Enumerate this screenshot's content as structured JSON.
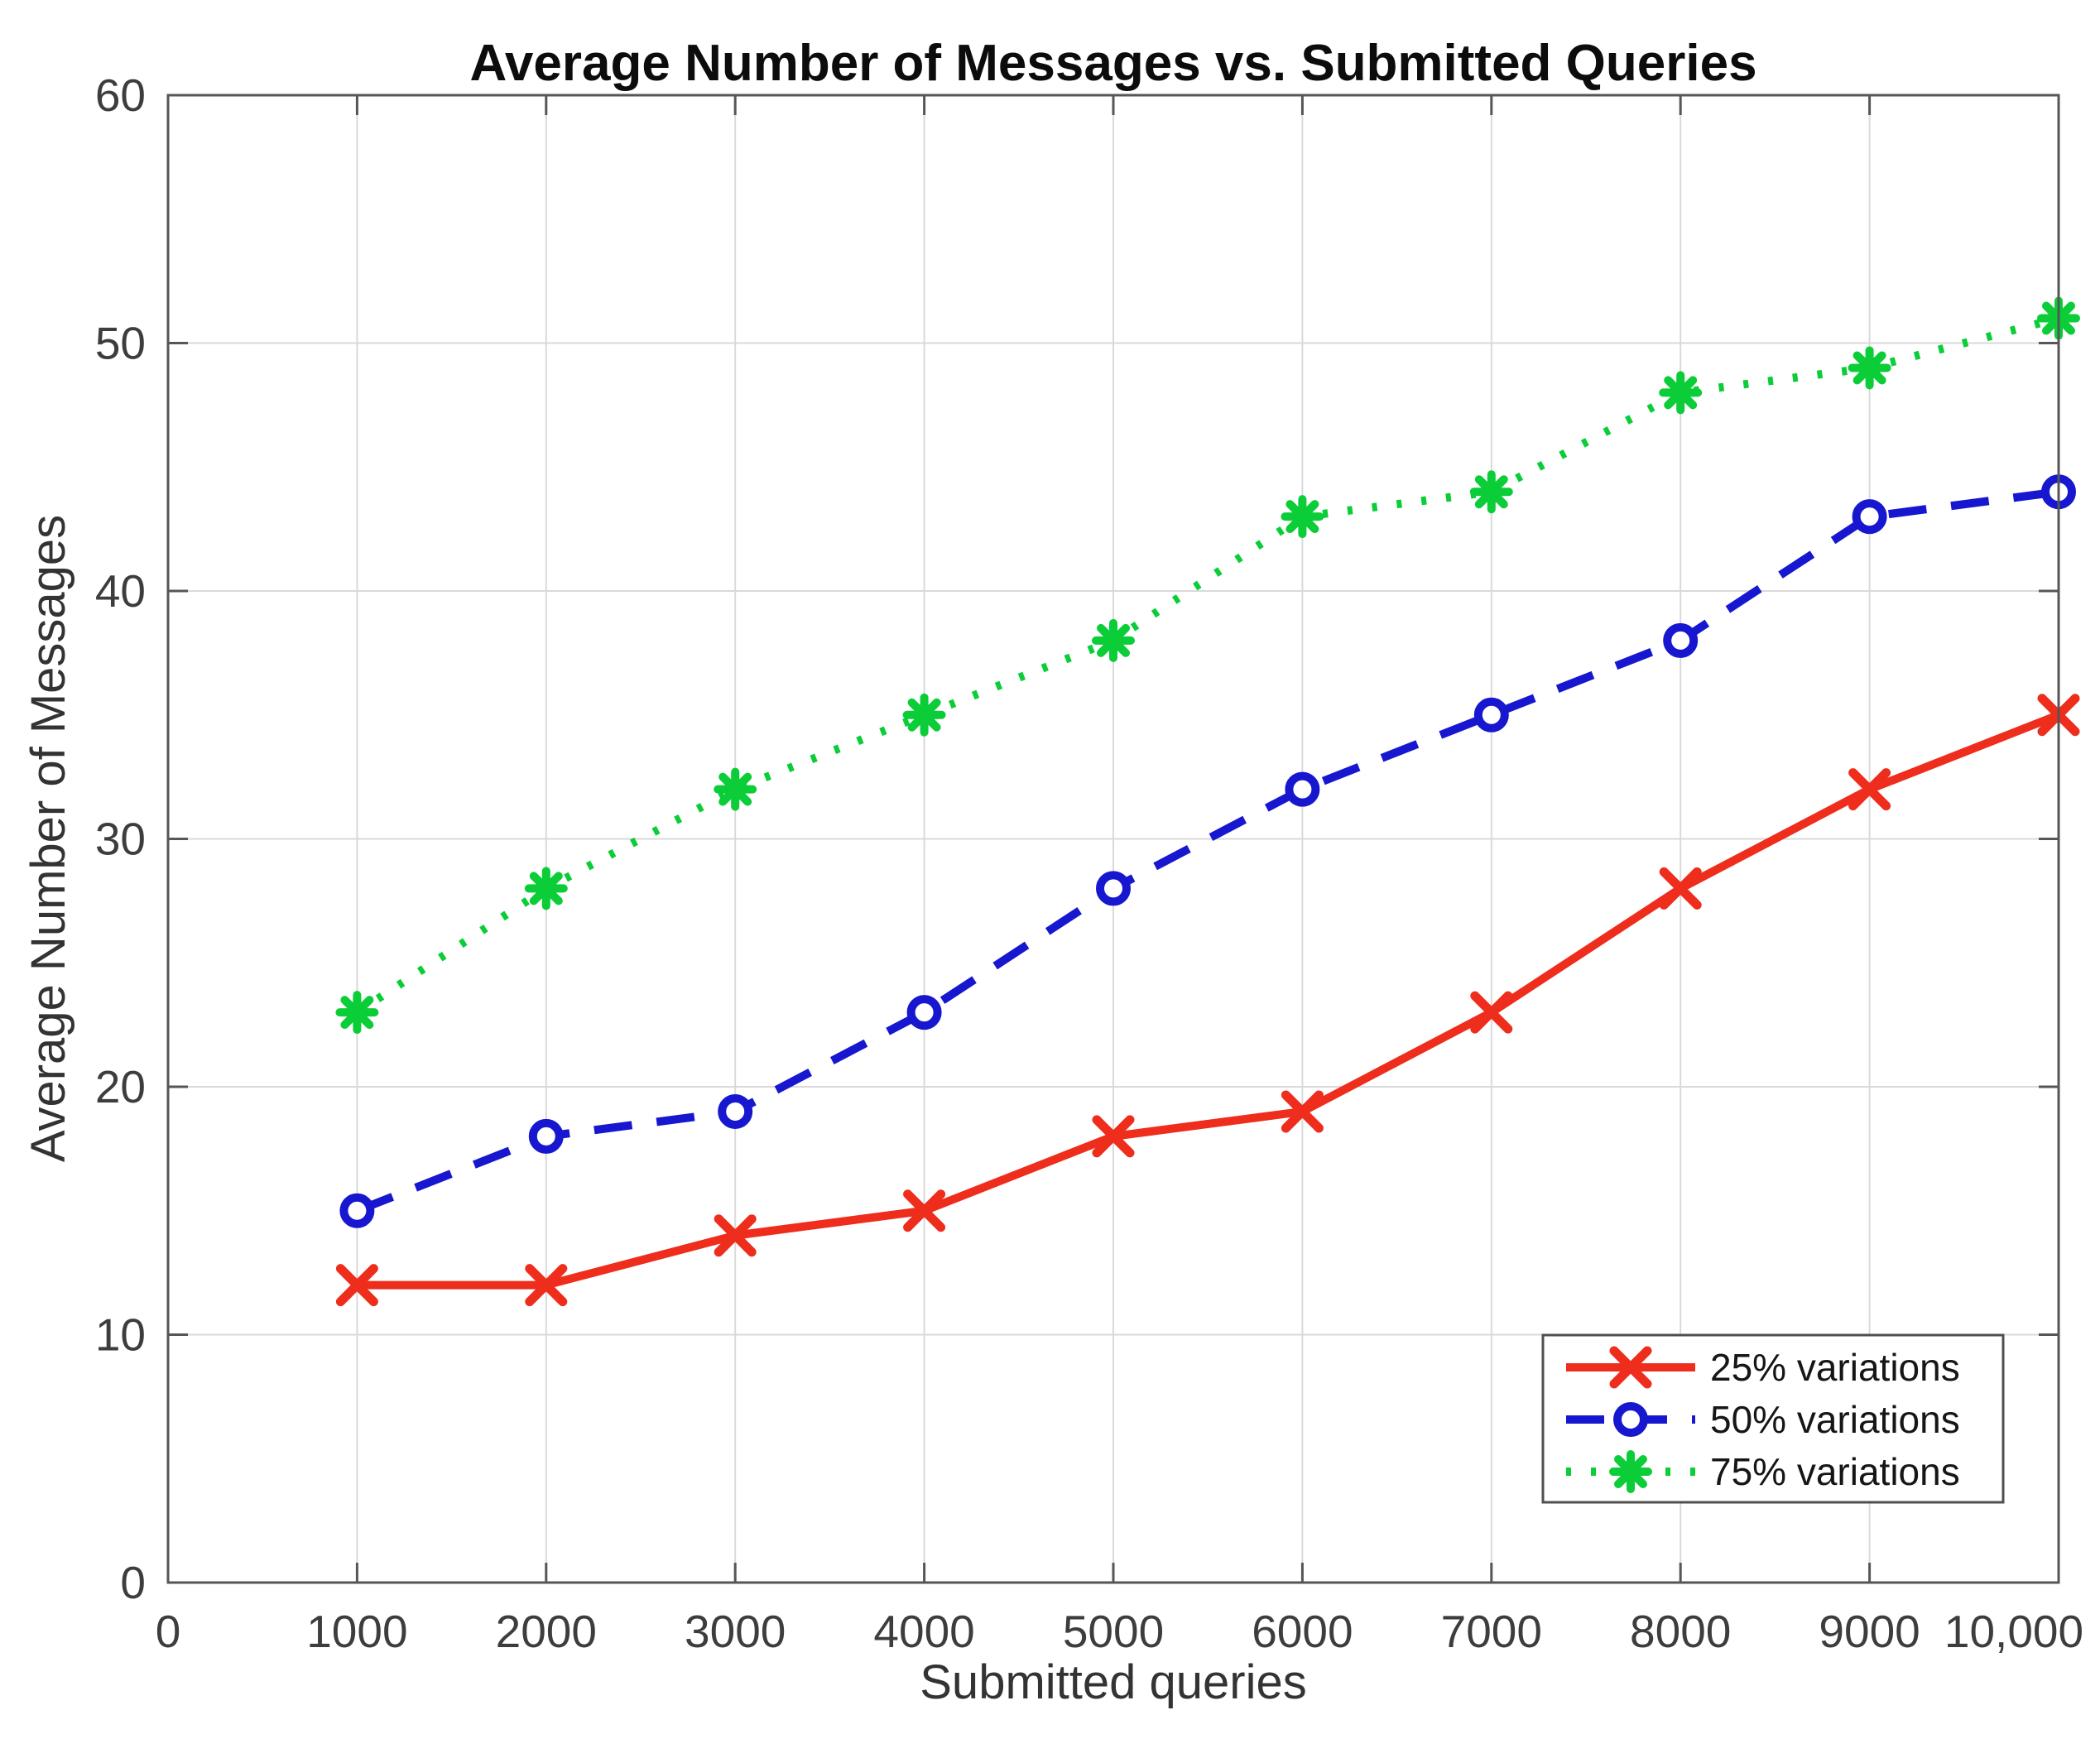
{
  "figure": {
    "background": "#ffffff"
  },
  "chart_data": {
    "type": "line",
    "title": "Average Number of Messages vs. Submitted Queries",
    "xlabel": "Submitted queries",
    "ylabel": "Average Number of Messages",
    "xlim": [
      0,
      10000
    ],
    "ylim": [
      0,
      60
    ],
    "grid": true,
    "legend_position": "lower right",
    "x": [
      1000,
      2000,
      3000,
      4000,
      5000,
      6000,
      7000,
      8000,
      9000,
      10000
    ],
    "series": [
      {
        "name": "25% variations",
        "color": "#ee2d1c",
        "line_style": "solid",
        "marker": "x",
        "values": [
          12,
          12,
          14,
          15,
          18,
          19,
          23,
          28,
          32,
          35
        ]
      },
      {
        "name": "50% variations",
        "color": "#1717d0",
        "line_style": "dashed",
        "marker": "circle",
        "values": [
          15,
          18,
          19,
          23,
          28,
          32,
          35,
          38,
          43,
          44
        ]
      },
      {
        "name": "75% variations",
        "color": "#0bcd38",
        "line_style": "dotted",
        "marker": "asterisk",
        "values": [
          23,
          28,
          32,
          35,
          38,
          43,
          44,
          48,
          49,
          51
        ]
      }
    ],
    "x_tick_values": [
      0,
      1000,
      2000,
      3000,
      4000,
      5000,
      6000,
      7000,
      8000,
      9000,
      10000
    ],
    "x_tick_labels": [
      "0",
      "1000",
      "2000",
      "3000",
      "4000",
      "5000",
      "6000",
      "7000",
      "8000",
      "9000",
      "10,000"
    ],
    "y_tick_values": [
      0,
      10,
      20,
      30,
      40,
      50,
      60
    ],
    "y_tick_labels": [
      "0",
      "10",
      "20",
      "30",
      "40",
      "50",
      "60"
    ]
  },
  "style": {
    "grid_color": "#d9d9d9",
    "axis_color": "#565656",
    "tick_label_color": "#3d3d3d",
    "title_color": "#0c0c0c",
    "axis_label_color": "#333333",
    "legend_border_color": "#4f4f4f",
    "legend_bg": "#ffffff",
    "legend_text_color": "#161616"
  }
}
